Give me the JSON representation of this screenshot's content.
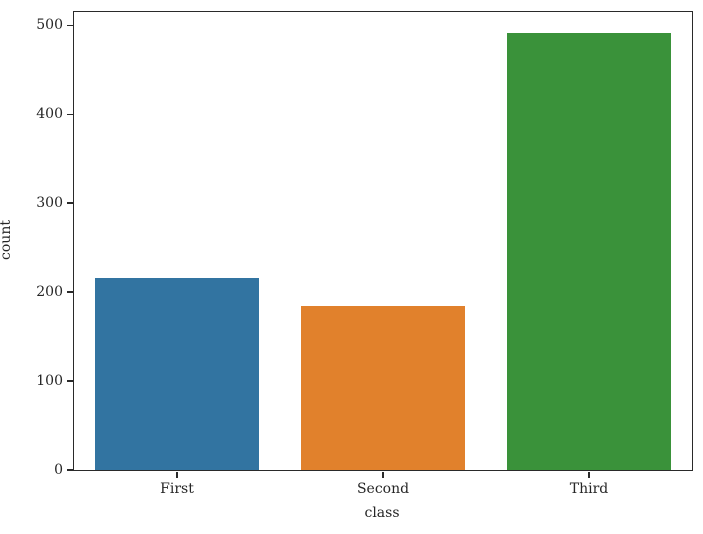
{
  "figure": {
    "background_color": "#ffffff",
    "axis_color": "#2a2a2a",
    "text_color": "#262626"
  },
  "chart_data": {
    "type": "bar",
    "title": "",
    "categories": [
      "First",
      "Second",
      "Third"
    ],
    "values": [
      216,
      184,
      491
    ],
    "bar_colors": [
      "#3274a1",
      "#e1812c",
      "#3a923a"
    ],
    "xlabel": "class",
    "ylabel": "count",
    "yticks": [
      0,
      100,
      200,
      300,
      400,
      500
    ],
    "ylim": [
      0,
      515
    ],
    "bar_width_fraction": 0.8,
    "grid": false,
    "legend": "none",
    "orientation": "vertical"
  }
}
